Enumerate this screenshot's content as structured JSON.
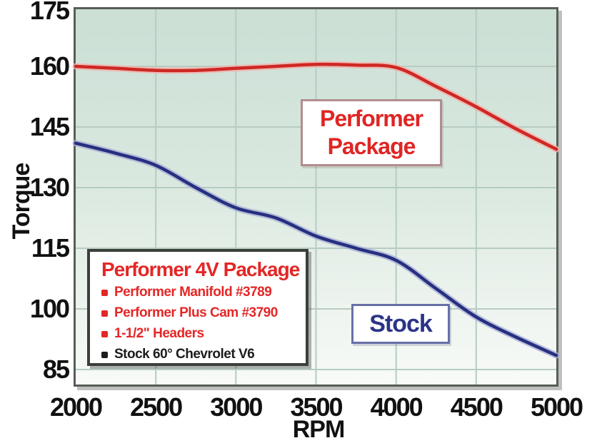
{
  "chart_data": {
    "type": "line",
    "title": "",
    "xlabel": "RPM",
    "ylabel": "Torque",
    "x_ticks": [
      2000,
      2500,
      3000,
      3500,
      4000,
      4500,
      5000
    ],
    "y_ticks": [
      85,
      100,
      115,
      130,
      145,
      160,
      175
    ],
    "xlim": [
      2000,
      5000
    ],
    "ylim": [
      85,
      175
    ],
    "grid": true,
    "grid_color": "#b6ccc2",
    "plot_bg_top": "#cbdfd5",
    "plot_bg_bottom": "#f8faf8",
    "series": [
      {
        "name": "Performer Package",
        "color": "#ce2823",
        "halo": "#f2b2ac",
        "x": [
          2000,
          2250,
          2500,
          2750,
          3000,
          3250,
          3500,
          3750,
          4000,
          4250,
          4500,
          4750,
          5000
        ],
        "values": [
          160,
          159.5,
          159,
          159,
          159.5,
          160,
          160.5,
          160.3,
          159.7,
          155,
          150,
          144.5,
          139.5
        ]
      },
      {
        "name": "Stock",
        "color": "#272f80",
        "halo": "#a9afd5",
        "x": [
          2000,
          2250,
          2500,
          2750,
          3000,
          3250,
          3500,
          3750,
          4000,
          4250,
          4500,
          4750,
          5000
        ],
        "values": [
          141,
          138.5,
          135.5,
          130,
          125,
          122.5,
          118,
          115,
          112,
          105,
          98,
          93,
          88.5
        ]
      }
    ],
    "legend_position": "inline-callouts"
  },
  "labels": {
    "performer_line1": "Performer",
    "performer_line2": "Package",
    "stock": "Stock"
  },
  "specs_box": {
    "title": "Performer 4V Package",
    "items": [
      {
        "text": "Performer Manifold #3789",
        "color": "#e32726"
      },
      {
        "text": "Performer Plus Cam #3790",
        "color": "#e32726"
      },
      {
        "text": "1-1/2\" Headers",
        "color": "#e32726"
      },
      {
        "text": "Stock 60° Chevrolet V6",
        "color": "#1c1c1c"
      }
    ]
  }
}
